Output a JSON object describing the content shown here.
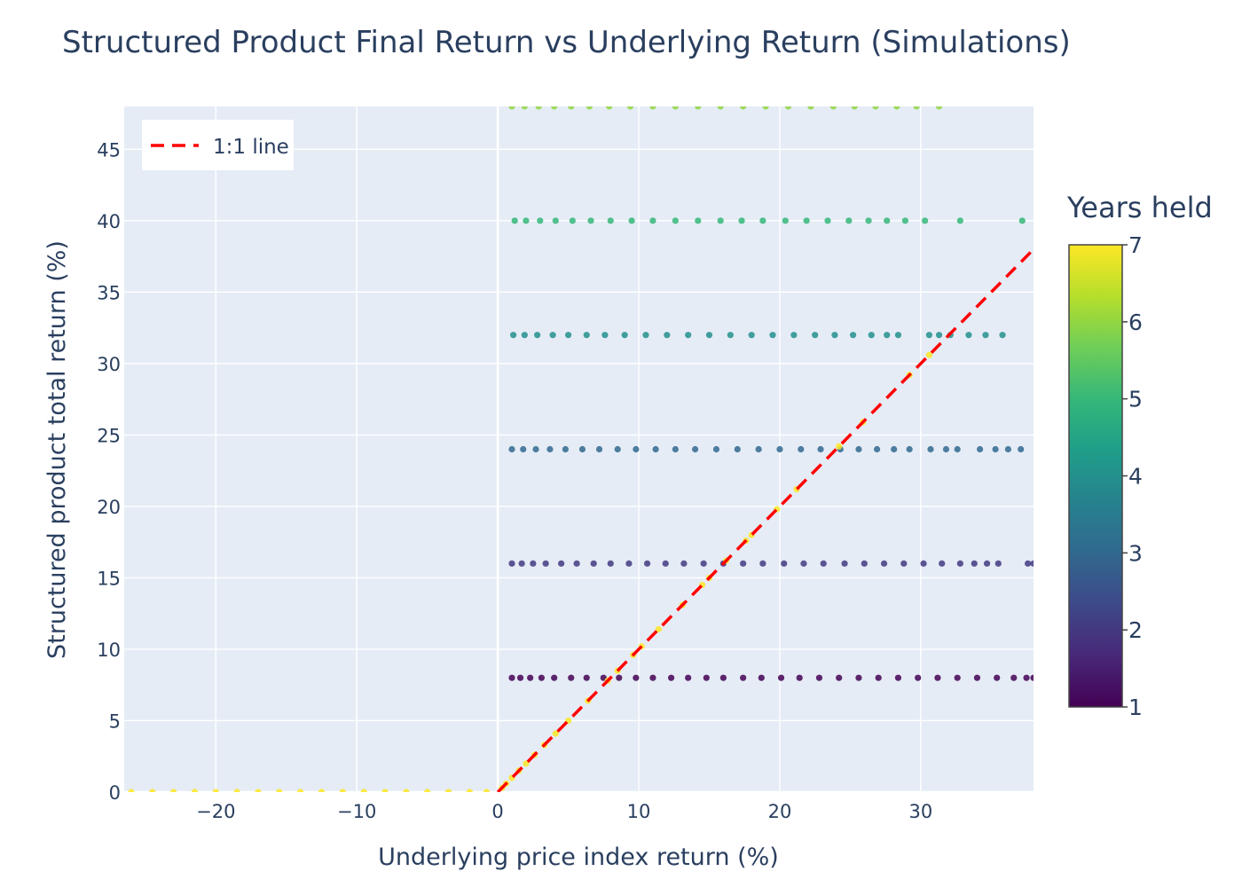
{
  "chart_data": {
    "type": "scatter",
    "title": "Structured Product Final Return vs Underlying Return (Simulations)",
    "xlabel": "Underlying price index return (%)",
    "ylabel": "Structured product total return (%)",
    "xlim": [
      -26.5,
      38
    ],
    "ylim": [
      0,
      48
    ],
    "x_ticks": [
      -20,
      -10,
      0,
      10,
      20,
      30
    ],
    "x_tick_labels": [
      "−20",
      "−10",
      "0",
      "10",
      "20",
      "30"
    ],
    "y_ticks": [
      0,
      5,
      10,
      15,
      20,
      25,
      30,
      35,
      40,
      45
    ],
    "y_tick_labels": [
      "0",
      "5",
      "10",
      "15",
      "20",
      "25",
      "30",
      "35",
      "40",
      "45"
    ],
    "grid": true,
    "legend": {
      "position": "top-left",
      "entries": [
        {
          "name": "1:1 line",
          "color": "#ff0000",
          "style": "dashed"
        }
      ]
    },
    "colorbar": {
      "title": "Years held",
      "colorscale": "Viridis",
      "range": [
        1,
        7
      ],
      "ticks": [
        1,
        2,
        3,
        4,
        5,
        6,
        7
      ],
      "tick_labels": [
        "1",
        "2",
        "3",
        "4",
        "5",
        "6",
        "7"
      ]
    },
    "series": [
      {
        "name": "1:1 line",
        "type": "line",
        "color": "#ff0000",
        "x": [
          0,
          38
        ],
        "y": [
          0,
          38
        ]
      },
      {
        "type": "scatter",
        "color_value": 1,
        "y_value": 8,
        "x": [
          1.0,
          1.6,
          2.3,
          3.1,
          4.0,
          5.2,
          6.3,
          7.5,
          8.6,
          9.8,
          11.0,
          12.3,
          13.5,
          14.8,
          16.0,
          17.4,
          18.7,
          20.1,
          21.4,
          22.8,
          24.2,
          25.6,
          27.0,
          28.4,
          29.8,
          31.2,
          32.6,
          34.0,
          35.4,
          36.6,
          37.5,
          38.0
        ]
      },
      {
        "type": "scatter",
        "color_value": 2,
        "y_value": 16,
        "x": [
          1.0,
          1.7,
          2.5,
          3.4,
          4.5,
          5.6,
          6.8,
          8.0,
          9.3,
          10.6,
          11.9,
          13.2,
          14.6,
          16.0,
          17.4,
          18.8,
          20.3,
          21.7,
          23.1,
          24.6,
          26.0,
          27.4,
          28.8,
          30.2,
          31.5,
          32.8,
          33.8,
          34.7,
          35.5,
          37.6,
          38.0
        ]
      },
      {
        "type": "scatter",
        "color_value": 3,
        "y_value": 24,
        "x": [
          1.0,
          1.8,
          2.7,
          3.7,
          4.8,
          6.0,
          7.2,
          8.5,
          9.8,
          11.2,
          12.6,
          14.0,
          15.5,
          17.0,
          18.5,
          20.0,
          21.5,
          22.9,
          24.3,
          25.6,
          26.9,
          28.1,
          29.2,
          30.7,
          31.8,
          32.6,
          34.2,
          35.3,
          36.2,
          37.1
        ]
      },
      {
        "type": "scatter",
        "color_value": 4,
        "y_value": 32,
        "x": [
          1.1,
          1.9,
          2.8,
          3.9,
          5.0,
          6.3,
          7.6,
          9.0,
          10.5,
          12.0,
          13.5,
          15.0,
          16.5,
          18.0,
          19.5,
          21.0,
          22.5,
          23.9,
          25.2,
          26.5,
          27.6,
          28.4,
          30.6,
          31.3,
          32.1,
          33.4,
          34.6,
          35.8
        ]
      },
      {
        "type": "scatter",
        "color_value": 5,
        "y_value": 40,
        "x": [
          1.2,
          2.0,
          3.0,
          4.1,
          5.3,
          6.6,
          8.0,
          9.5,
          11.0,
          12.6,
          14.2,
          15.8,
          17.3,
          18.8,
          20.4,
          21.9,
          23.4,
          24.9,
          26.3,
          27.6,
          28.9,
          30.3,
          32.8,
          37.2
        ]
      },
      {
        "type": "scatter",
        "color_value": 6,
        "y_value": 48,
        "x": [
          1.0,
          1.9,
          2.9,
          4.0,
          5.2,
          6.5,
          7.9,
          9.4,
          11.0,
          12.6,
          14.2,
          15.8,
          17.4,
          19.0,
          20.6,
          22.2,
          23.8,
          25.3,
          26.8,
          28.3,
          29.7,
          31.3
        ]
      },
      {
        "type": "scatter",
        "color_value": 7,
        "note_values": "final return equals max(underlying, 0)",
        "x": [
          -26.0,
          -24.5,
          -23.0,
          -21.5,
          -20.0,
          -18.5,
          -17.0,
          -15.5,
          -14.0,
          -12.5,
          -11.0,
          -9.5,
          -8.0,
          -6.5,
          -5.0,
          -3.5,
          -2.0,
          -0.8,
          0.3,
          0.6,
          1.0,
          1.5,
          2.0,
          2.6,
          3.3,
          4.1,
          5.0,
          6.4,
          7.8,
          8.5,
          9.6,
          10.2,
          11.4,
          13.1,
          14.5,
          15.0,
          16.2,
          17.6,
          18.0,
          19.8,
          21.2,
          24.2,
          25.9,
          29.2,
          30.6
        ],
        "y": [
          0,
          0,
          0,
          0,
          0,
          0,
          0,
          0,
          0,
          0,
          0,
          0,
          0,
          0,
          0,
          0,
          0,
          0,
          0.3,
          0.6,
          1.0,
          1.5,
          2.0,
          2.6,
          3.3,
          4.1,
          5.0,
          6.4,
          7.8,
          8.5,
          9.6,
          10.2,
          11.4,
          13.1,
          14.5,
          15.0,
          16.2,
          17.6,
          18.0,
          19.8,
          21.2,
          24.2,
          25.9,
          29.2,
          30.6
        ]
      }
    ]
  }
}
